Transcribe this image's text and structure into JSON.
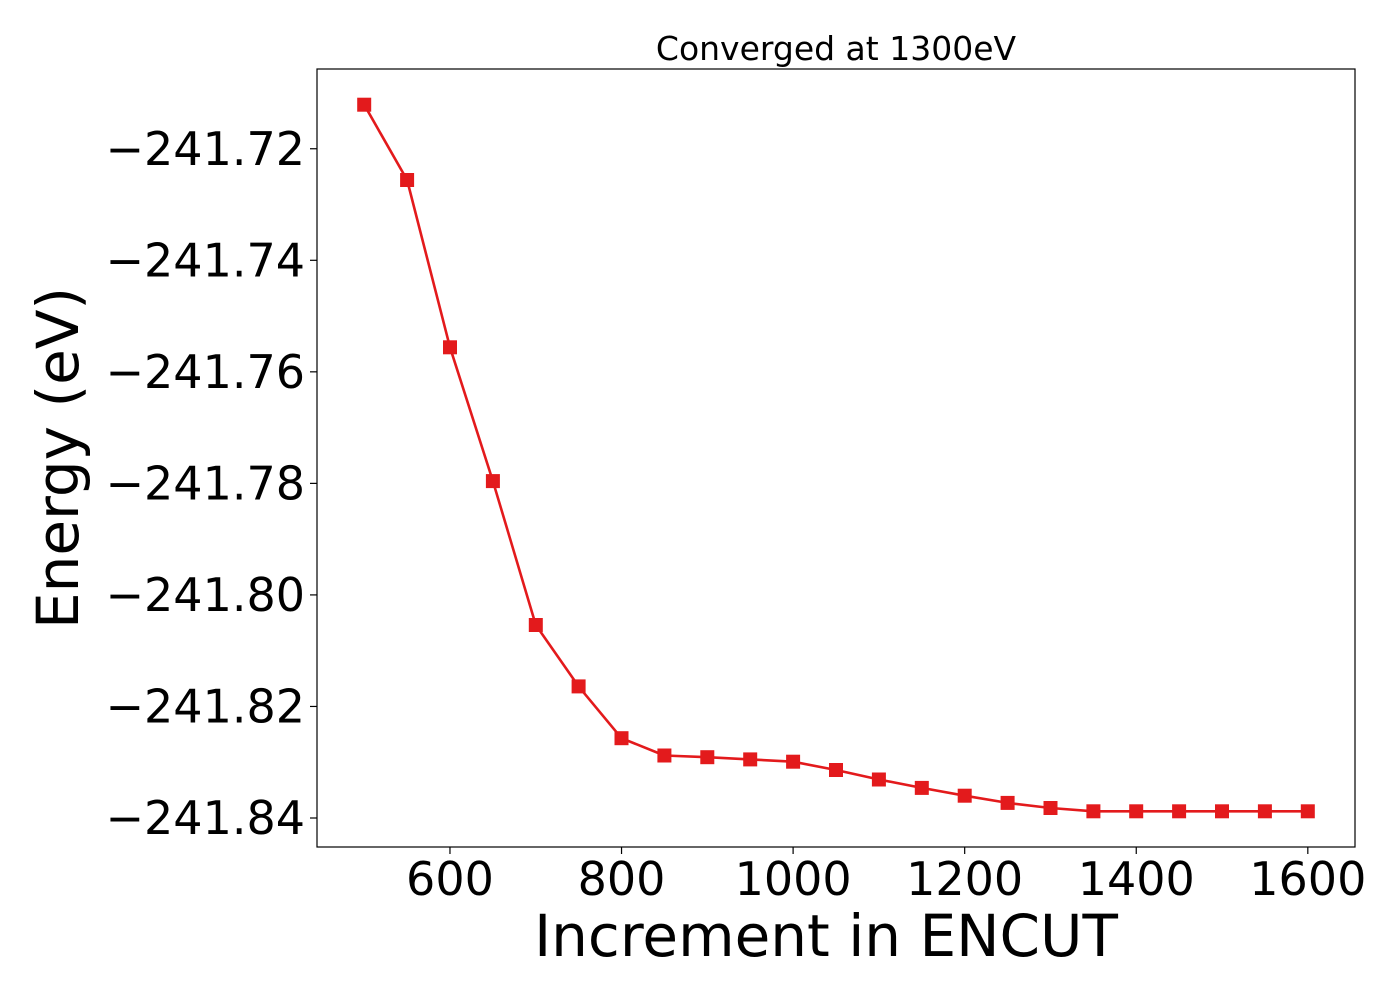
{
  "chart_data": {
    "type": "line",
    "title": "Converged at 1300eV",
    "xlabel": "Increment in ENCUT",
    "ylabel": "Energy (eV)",
    "xlim": [
      445,
      1655
    ],
    "ylim": [
      -241.8452,
      -241.7057
    ],
    "x_ticks": [
      600,
      800,
      1000,
      1200,
      1400,
      1600
    ],
    "x_tick_labels": [
      "600",
      "800",
      "1000",
      "1200",
      "1400",
      "1600"
    ],
    "y_ticks": [
      -241.72,
      -241.74,
      -241.76,
      -241.78,
      -241.8,
      -241.82,
      -241.84
    ],
    "y_tick_labels": [
      "−241.72",
      "−241.74",
      "−241.76",
      "−241.78",
      "−241.80",
      "−241.82",
      "−241.84"
    ],
    "grid": false,
    "legend": "none",
    "series": [
      {
        "color": "#e31a1c",
        "marker": "square",
        "x": [
          500,
          550,
          600,
          650,
          700,
          750,
          800,
          850,
          900,
          950,
          1000,
          1050,
          1100,
          1150,
          1200,
          1250,
          1300,
          1350,
          1400,
          1450,
          1500,
          1550,
          1600
        ],
        "y": [
          -241.7121,
          -241.7256,
          -241.7556,
          -241.7796,
          -241.8054,
          -241.8164,
          -241.8257,
          -241.8288,
          -241.8291,
          -241.8295,
          -241.8299,
          -241.8314,
          -241.8331,
          -241.8346,
          -241.836,
          -241.8373,
          -241.8382,
          -241.8388,
          -241.8388,
          -241.8388,
          -241.8388,
          -241.8388,
          -241.8388
        ]
      }
    ]
  }
}
